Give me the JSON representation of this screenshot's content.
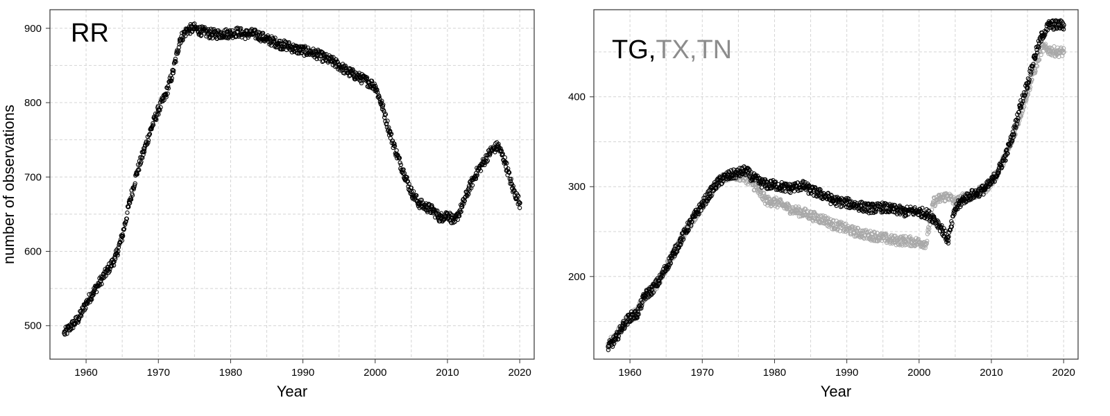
{
  "chart_data": [
    {
      "type": "scatter",
      "title": "RR",
      "xlabel": "Year",
      "ylabel": "number of observations",
      "xlim": [
        1955,
        2022
      ],
      "ylim": [
        455,
        925
      ],
      "xticks": [
        1960,
        1970,
        1980,
        1990,
        2000,
        2010,
        2020
      ],
      "yticks": [
        500,
        600,
        700,
        800,
        900
      ],
      "grid": true,
      "series": [
        {
          "color": "#000000",
          "x": [
            1957,
            1958,
            1959,
            1960,
            1961,
            1962,
            1963,
            1964,
            1965,
            1966,
            1967,
            1968,
            1969,
            1970,
            1971,
            1972,
            1973,
            1974,
            1975,
            1976,
            1977,
            1978,
            1979,
            1980,
            1981,
            1982,
            1983,
            1984,
            1985,
            1986,
            1987,
            1988,
            1989,
            1990,
            1991,
            1992,
            1993,
            1994,
            1995,
            1996,
            1997,
            1998,
            1999,
            2000,
            2001,
            2002,
            2003,
            2004,
            2005,
            2006,
            2007,
            2008,
            2009,
            2010,
            2011,
            2012,
            2013,
            2014,
            2015,
            2016,
            2017,
            2018,
            2019,
            2020
          ],
          "y": [
            490,
            500,
            510,
            530,
            545,
            560,
            575,
            590,
            620,
            665,
            705,
            735,
            765,
            790,
            810,
            840,
            885,
            898,
            900,
            896,
            893,
            892,
            893,
            893,
            895,
            892,
            893,
            890,
            885,
            882,
            878,
            876,
            872,
            870,
            868,
            865,
            860,
            856,
            850,
            843,
            838,
            833,
            828,
            822,
            795,
            760,
            730,
            705,
            680,
            665,
            660,
            655,
            645,
            650,
            640,
            660,
            685,
            705,
            720,
            735,
            742,
            720,
            685,
            665
          ]
        }
      ]
    },
    {
      "type": "scatter",
      "title": "TG,TX,TN",
      "title_parts": [
        {
          "text": "TG,",
          "color": "#000000"
        },
        {
          "text": "TX,TN",
          "color": "#8c8c8c"
        }
      ],
      "xlabel": "Year",
      "ylabel": "",
      "xlim": [
        1955,
        2022
      ],
      "ylim": [
        108,
        497
      ],
      "xticks": [
        1960,
        1970,
        1980,
        1990,
        2000,
        2010,
        2020
      ],
      "yticks": [
        200,
        300,
        400
      ],
      "grid": true,
      "series": [
        {
          "name": "TX,TN",
          "color": "#a8a8a8",
          "x": [
            1957,
            1958,
            1959,
            1960,
            1961,
            1962,
            1963,
            1964,
            1965,
            1966,
            1967,
            1968,
            1969,
            1970,
            1971,
            1972,
            1973,
            1974,
            1975,
            1976,
            1977,
            1978,
            1979,
            1980,
            1981,
            1982,
            1983,
            1984,
            1985,
            1986,
            1987,
            1988,
            1989,
            1990,
            1991,
            1992,
            1993,
            1994,
            1995,
            1996,
            1997,
            1998,
            1999,
            2000,
            2001,
            2002,
            2003,
            2004,
            2005,
            2006,
            2007,
            2008,
            2009,
            2010,
            2011,
            2012,
            2013,
            2014,
            2015,
            2016,
            2017,
            2018,
            2019,
            2020
          ],
          "y": [
            125,
            132,
            145,
            155,
            160,
            178,
            185,
            195,
            210,
            225,
            240,
            255,
            268,
            280,
            292,
            303,
            310,
            313,
            312,
            310,
            303,
            292,
            284,
            283,
            280,
            276,
            273,
            271,
            268,
            265,
            263,
            258,
            256,
            253,
            250,
            248,
            246,
            245,
            243,
            241,
            240,
            240,
            239,
            238,
            237,
            283,
            287,
            290,
            282,
            287,
            290,
            293,
            297,
            305,
            318,
            335,
            355,
            380,
            405,
            430,
            455,
            452,
            450,
            450
          ]
        },
        {
          "name": "TG",
          "color": "#000000",
          "x": [
            1957,
            1958,
            1959,
            1960,
            1961,
            1962,
            1963,
            1964,
            1965,
            1966,
            1967,
            1968,
            1969,
            1970,
            1971,
            1972,
            1973,
            1974,
            1975,
            1976,
            1977,
            1978,
            1979,
            1980,
            1981,
            1982,
            1983,
            1984,
            1985,
            1986,
            1987,
            1988,
            1989,
            1990,
            1991,
            1992,
            1993,
            1994,
            1995,
            1996,
            1997,
            1998,
            1999,
            2000,
            2001,
            2002,
            2003,
            2004,
            2005,
            2006,
            2007,
            2008,
            2009,
            2010,
            2011,
            2012,
            2013,
            2014,
            2015,
            2016,
            2017,
            2018,
            2019,
            2020
          ],
          "y": [
            122,
            130,
            145,
            155,
            158,
            178,
            185,
            195,
            210,
            225,
            240,
            255,
            268,
            280,
            292,
            303,
            310,
            313,
            315,
            318,
            310,
            305,
            302,
            302,
            300,
            298,
            300,
            301,
            296,
            293,
            290,
            285,
            283,
            282,
            280,
            278,
            276,
            276,
            277,
            275,
            274,
            272,
            273,
            272,
            270,
            265,
            255,
            240,
            275,
            285,
            290,
            293,
            297,
            305,
            318,
            335,
            358,
            390,
            415,
            445,
            468,
            480,
            480,
            480
          ]
        }
      ]
    }
  ]
}
